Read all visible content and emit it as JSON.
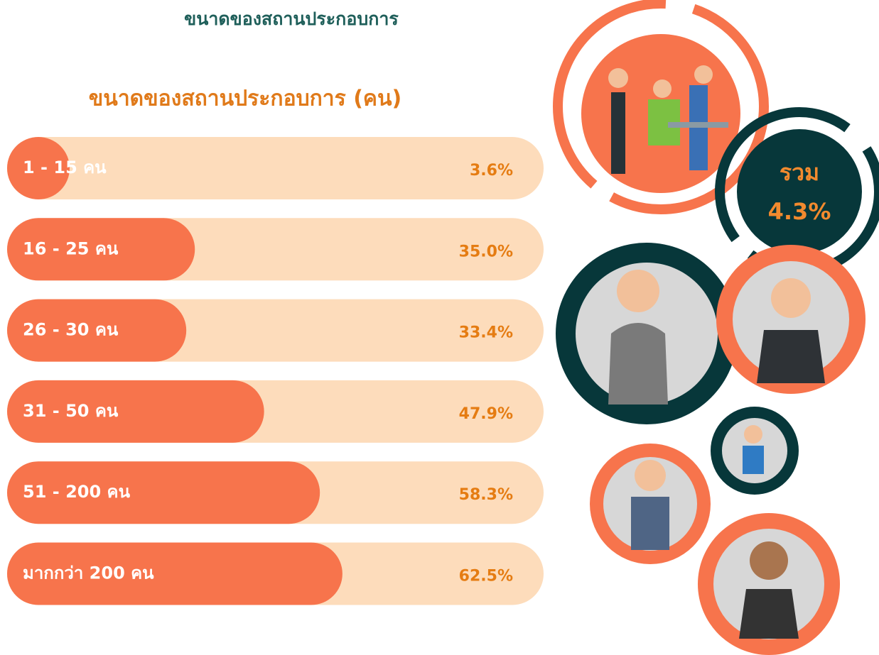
{
  "chart_data": {
    "type": "bar",
    "orientation": "horizontal",
    "title": "ขนาดของสถานประกอบการ",
    "subtitle": "ขนาดของสถานประกอบการ (คน)",
    "categories": [
      "1 - 15 คน",
      "16 - 25 คน",
      "26 - 30 คน",
      "31 - 50 คน",
      "51 - 200 คน",
      "มากกว่า 200 คน"
    ],
    "values": [
      3.6,
      35.0,
      33.4,
      47.9,
      58.3,
      62.5
    ],
    "value_labels": [
      "3.6%",
      "35.0%",
      "33.4%",
      "47.9%",
      "58.3%",
      "62.5%"
    ],
    "xlim": [
      0,
      100
    ],
    "color": "#f7744c",
    "track_color": "#fddcbb",
    "total": {
      "label": "รวม",
      "value_label": "4.3%"
    }
  }
}
